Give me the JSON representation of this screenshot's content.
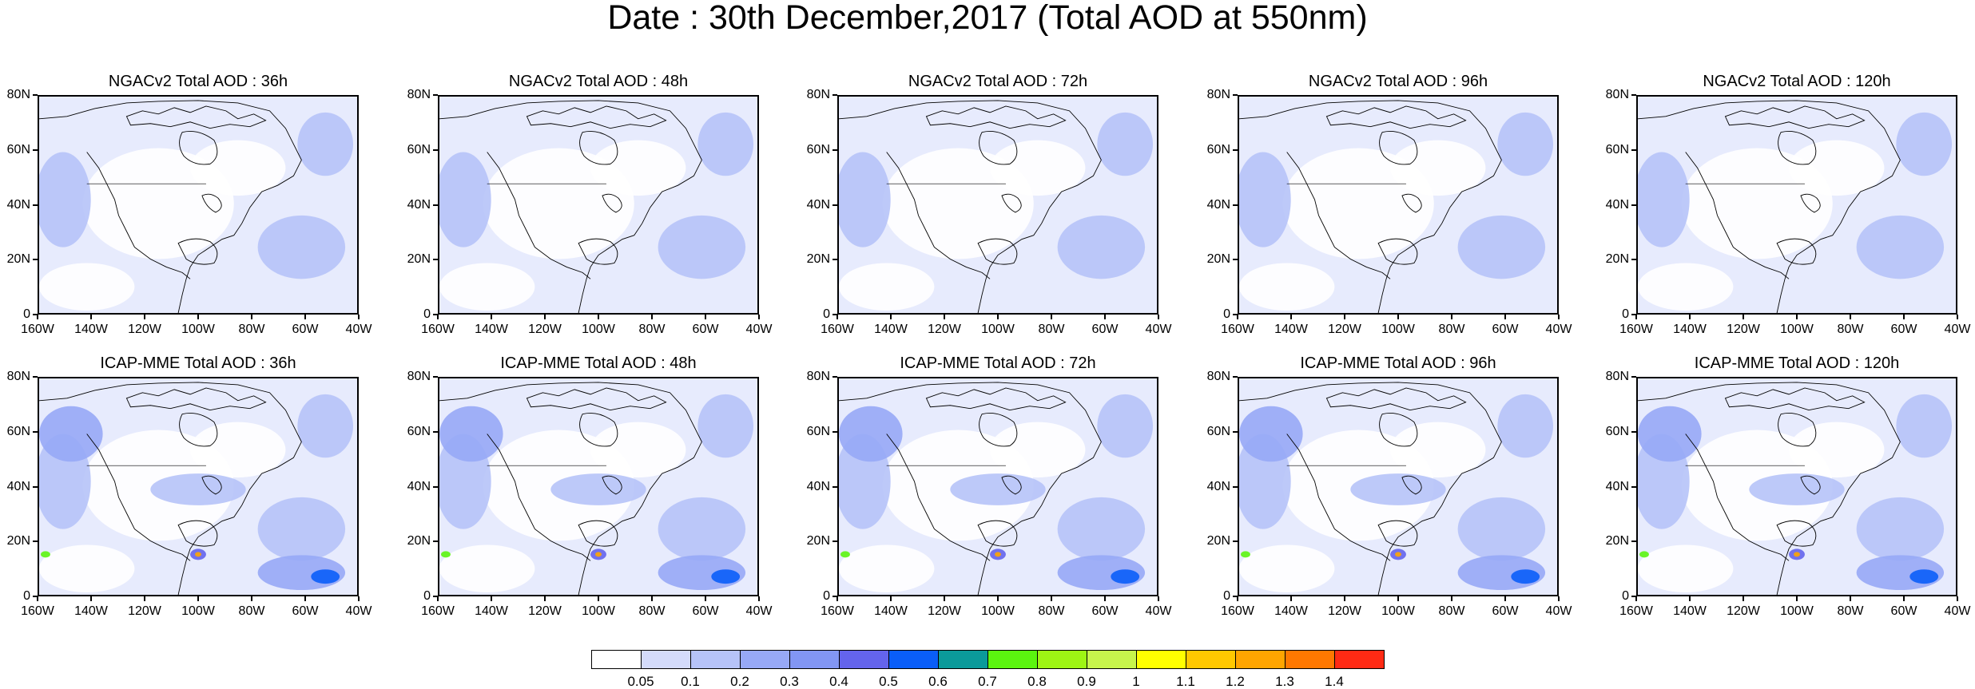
{
  "title": "Date : 30th December,2017 (Total AOD at 550nm)",
  "lat_labels": [
    "80N",
    "60N",
    "40N",
    "20N",
    "0"
  ],
  "lon_labels": [
    "160W",
    "140W",
    "120W",
    "100W",
    "80W",
    "60W",
    "40W"
  ],
  "rows": [
    {
      "model": "NGACv2",
      "panels": [
        {
          "title": "NGACv2 Total AOD : 36h",
          "lead": "36h"
        },
        {
          "title": "NGACv2 Total AOD : 48h",
          "lead": "48h"
        },
        {
          "title": "NGACv2 Total AOD : 72h",
          "lead": "72h"
        },
        {
          "title": "NGACv2 Total AOD : 96h",
          "lead": "96h"
        },
        {
          "title": "NGACv2 Total AOD : 120h",
          "lead": "120h"
        }
      ]
    },
    {
      "model": "ICAP-MME",
      "panels": [
        {
          "title": "ICAP-MME Total AOD : 36h",
          "lead": "36h"
        },
        {
          "title": "ICAP-MME Total AOD : 48h",
          "lead": "48h"
        },
        {
          "title": "ICAP-MME Total AOD : 72h",
          "lead": "72h"
        },
        {
          "title": "ICAP-MME Total AOD : 96h",
          "lead": "96h"
        },
        {
          "title": "ICAP-MME Total AOD : 120h",
          "lead": "120h"
        }
      ]
    }
  ],
  "colorbar": {
    "colors": [
      "#ffffff",
      "#d4dbfb",
      "#b6c3f8",
      "#97a9f6",
      "#8296f4",
      "#6464ec",
      "#0a5ef8",
      "#0b9a9a",
      "#5bf50f",
      "#9ef514",
      "#c7f54c",
      "#ffff00",
      "#ffc800",
      "#ffa500",
      "#ff7800",
      "#ff2a14"
    ],
    "labels": [
      "0.05",
      "0.1",
      "0.2",
      "0.3",
      "0.4",
      "0.5",
      "0.6",
      "0.7",
      "0.8",
      "0.9",
      "1",
      "1.1",
      "1.2",
      "1.3",
      "1.4"
    ]
  }
}
